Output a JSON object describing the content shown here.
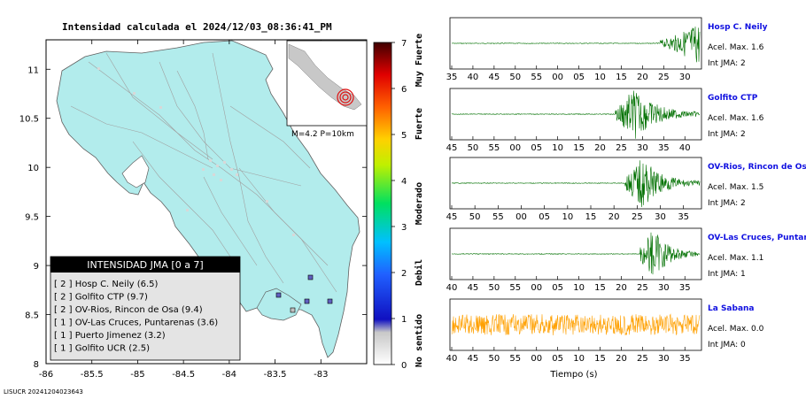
{
  "title": "Intensidad calculada el 2024/12/03_08:36:41_PM",
  "footer_id": "LISUCR 20241204023643",
  "map": {
    "x_ticks": [
      "-86",
      "-85.5",
      "-85",
      "-84.5",
      "-84",
      "-83.5",
      "-83"
    ],
    "y_ticks": [
      "11",
      "10.5",
      "10",
      "9.5",
      "9",
      "8.5",
      "8"
    ],
    "inset_label": "M=4.2 P=10km",
    "land_color": "#b2ecec",
    "legend_title": "INTENSIDAD JMA [0 a 7]",
    "legend_items": [
      "[ 2 ]  Hosp C. Neily (6.5)",
      "[ 2 ]  Golfito CTP (9.7)",
      "[ 2 ]  OV-Rios, Rincon de Osa (9.4)",
      "[ 1 ]  OV-Las Cruces, Puntarenas (3.6)",
      "[ 1 ]  Puerto Jimenez (3.2)",
      "[ 1 ]  Golfito UCR (2.5)"
    ]
  },
  "colorbar": {
    "ticks": [
      "0",
      "1",
      "2",
      "3",
      "4",
      "5",
      "6",
      "7"
    ],
    "categories": [
      "No sentido",
      "Debil",
      "Moderado",
      "Fuerte",
      "Muy Fuerte"
    ]
  },
  "seismograms": {
    "xlabel": "Tiempo (s)",
    "traces_color": "#007000",
    "last_trace_color": "#ffa000",
    "panels": [
      {
        "name": "Hosp C. Neily",
        "accel": "Acel. Max. 1.6",
        "jma": "Int JMA: 2",
        "ticks": [
          "35",
          "40",
          "45",
          "50",
          "55",
          "00",
          "05",
          "10",
          "15",
          "20",
          "25",
          "30"
        ],
        "onset": 0.84,
        "kind": "late"
      },
      {
        "name": "Golfito CTP",
        "accel": "Acel. Max. 1.6",
        "jma": "Int JMA: 2",
        "ticks": [
          "45",
          "50",
          "55",
          "00",
          "05",
          "10",
          "15",
          "20",
          "25",
          "30",
          "35",
          "40"
        ],
        "onset": 0.66,
        "kind": "burst"
      },
      {
        "name": "OV-Rios, Rincon de Os",
        "accel": "Acel. Max. 1.5",
        "jma": "Int JMA: 2",
        "ticks": [
          "45",
          "50",
          "55",
          "00",
          "05",
          "10",
          "15",
          "20",
          "25",
          "30",
          "35"
        ],
        "onset": 0.7,
        "kind": "burst"
      },
      {
        "name": "OV-Las Cruces, Puntar",
        "accel": "Acel. Max. 1.1",
        "jma": "Int JMA: 1",
        "ticks": [
          "40",
          "45",
          "50",
          "55",
          "00",
          "05",
          "10",
          "15",
          "20",
          "25",
          "30",
          "35"
        ],
        "onset": 0.76,
        "kind": "burst"
      },
      {
        "name": "La Sabana",
        "accel": "Acel. Max. 0.0",
        "jma": "Int JMA: 0",
        "ticks": [
          "40",
          "45",
          "50",
          "55",
          "00",
          "05",
          "10",
          "15",
          "20",
          "25",
          "30",
          "35"
        ],
        "onset": 0.0,
        "kind": "noise"
      }
    ]
  },
  "chart_data": [
    {
      "type": "scatter",
      "xlabel": "",
      "ylabel": "",
      "xlim": [
        -86,
        -82.5
      ],
      "ylim": [
        8,
        11.3
      ],
      "series": [],
      "legend": [
        {
          "label": "Hosp C. Neily",
          "intensity": 2,
          "distance": 6.5
        },
        {
          "label": "Golfito CTP",
          "intensity": 2,
          "distance": 9.7
        },
        {
          "label": "OV-Rios, Rincon de Osa",
          "intensity": 2,
          "distance": 9.4
        },
        {
          "label": "OV-Las Cruces, Puntarenas",
          "intensity": 1,
          "distance": 3.6
        },
        {
          "label": "Puerto Jimenez",
          "intensity": 1,
          "distance": 3.2
        },
        {
          "label": "Golfito UCR",
          "intensity": 1,
          "distance": 2.5
        }
      ]
    },
    {
      "type": "line",
      "xlabel": "Tiempo (s)",
      "series": [
        {
          "name": "Hosp C. Neily",
          "acel_max": 1.6,
          "int_jma": 2
        },
        {
          "name": "Golfito CTP",
          "acel_max": 1.6,
          "int_jma": 2
        },
        {
          "name": "OV-Rios, Rincon de Os",
          "acel_max": 1.5,
          "int_jma": 2
        },
        {
          "name": "OV-Las Cruces, Puntar",
          "acel_max": 1.1,
          "int_jma": 1
        },
        {
          "name": "La Sabana",
          "acel_max": 0.0,
          "int_jma": 0
        }
      ]
    }
  ]
}
